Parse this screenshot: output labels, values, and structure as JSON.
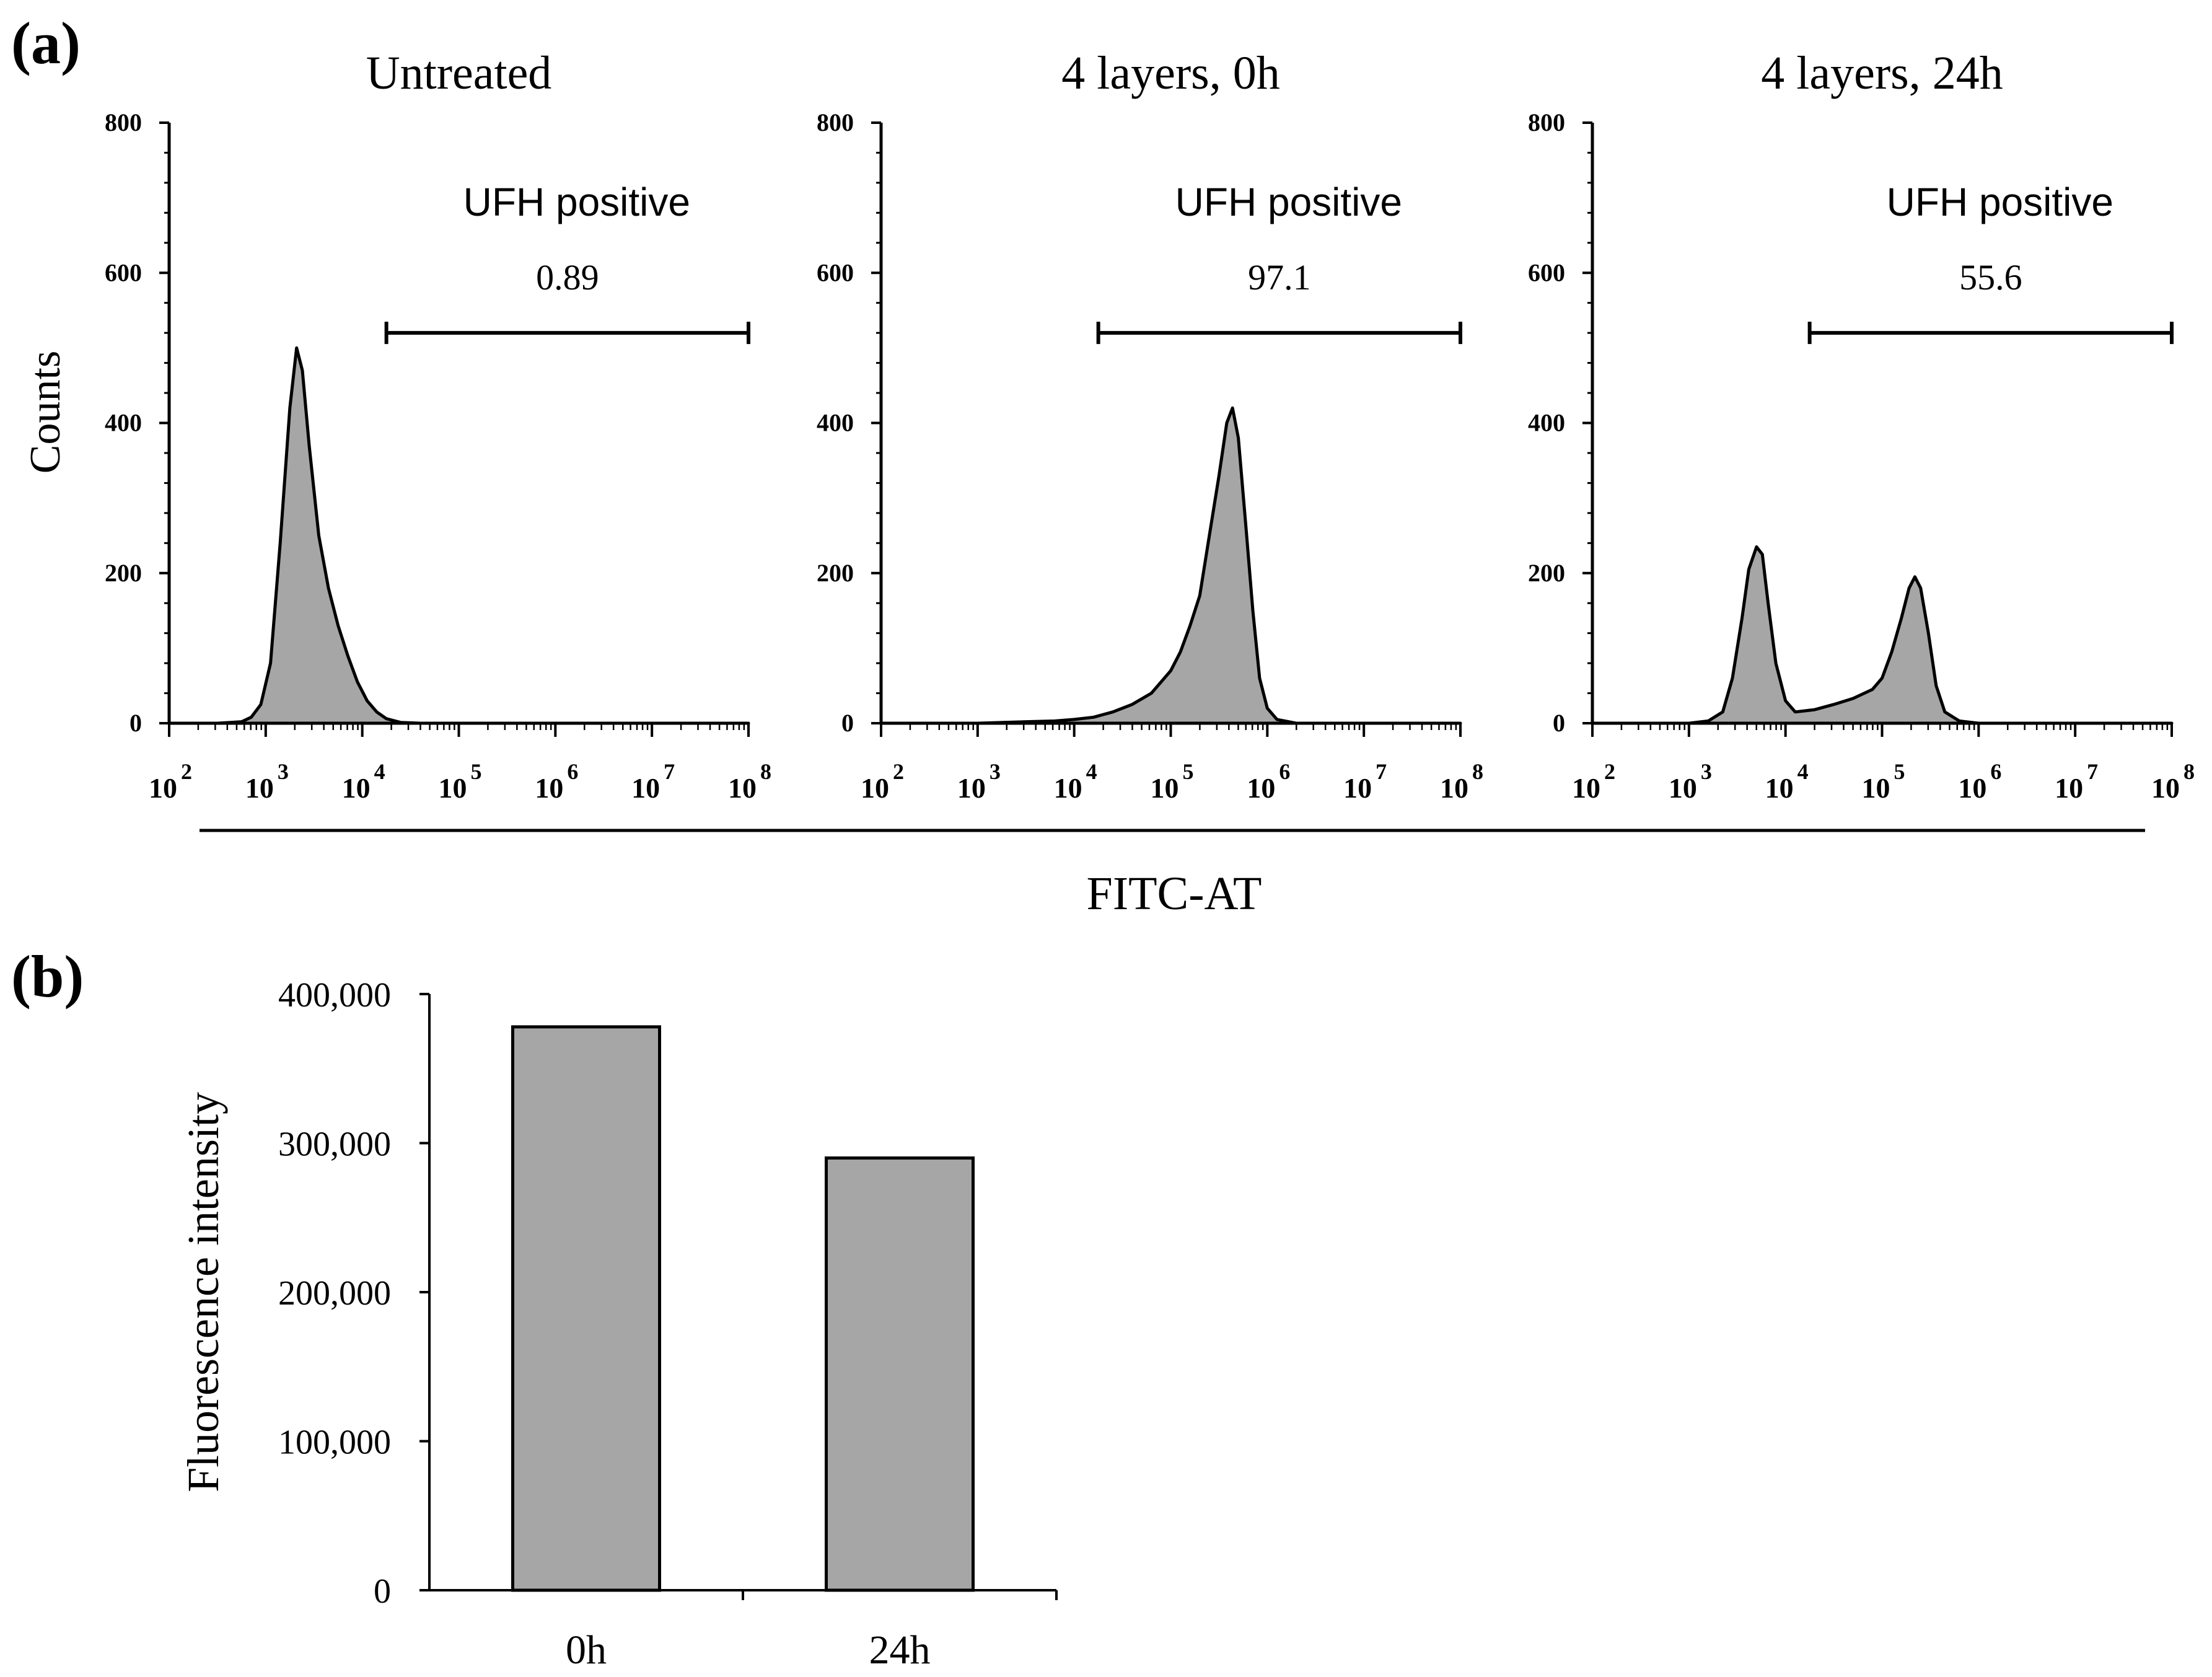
{
  "figure": {
    "panel_a_label": "(a)",
    "panel_b_label": "(b)",
    "shared_xlabel": "FITC-AT",
    "shared_ylabel": "Counts",
    "fill_color": "#a6a6a6",
    "line_color": "#000000"
  },
  "chart_data": [
    {
      "type": "area",
      "title": "Untreated",
      "ylabel": "Counts",
      "xlabel": "FITC-AT",
      "xscale": "log",
      "xlim": [
        100,
        100000000
      ],
      "ylim": [
        0,
        800
      ],
      "yticks": [
        "0",
        "200",
        "400",
        "600",
        "800"
      ],
      "xticks": [
        {
          "base": "10",
          "exp": "2"
        },
        {
          "base": "10",
          "exp": "3"
        },
        {
          "base": "10",
          "exp": "4"
        },
        {
          "base": "10",
          "exp": "5"
        },
        {
          "base": "10",
          "exp": "6"
        },
        {
          "base": "10",
          "exp": "7"
        },
        {
          "base": "10",
          "exp": "8"
        }
      ],
      "gate": {
        "label": "UFH positive",
        "value": "0.89",
        "from_log10": 4.25,
        "to_log10": 8.0,
        "y": 520
      },
      "series": [
        {
          "name": "Untreated",
          "points": [
            [
              2.0,
              0
            ],
            [
              2.5,
              0
            ],
            [
              2.75,
              2
            ],
            [
              2.85,
              8
            ],
            [
              2.95,
              25
            ],
            [
              3.05,
              80
            ],
            [
              3.15,
              240
            ],
            [
              3.25,
              420
            ],
            [
              3.32,
              500
            ],
            [
              3.38,
              470
            ],
            [
              3.45,
              370
            ],
            [
              3.55,
              250
            ],
            [
              3.65,
              180
            ],
            [
              3.75,
              130
            ],
            [
              3.85,
              90
            ],
            [
              3.95,
              55
            ],
            [
              4.05,
              30
            ],
            [
              4.15,
              15
            ],
            [
              4.25,
              6
            ],
            [
              4.4,
              1
            ],
            [
              4.6,
              0
            ],
            [
              8.0,
              0
            ]
          ]
        }
      ]
    },
    {
      "type": "area",
      "title": "4 layers, 0h",
      "ylabel": "Counts",
      "xlabel": "FITC-AT",
      "xscale": "log",
      "xlim": [
        100,
        100000000
      ],
      "ylim": [
        0,
        800
      ],
      "yticks": [
        "0",
        "200",
        "400",
        "600",
        "800"
      ],
      "xticks": [
        {
          "base": "10",
          "exp": "2"
        },
        {
          "base": "10",
          "exp": "3"
        },
        {
          "base": "10",
          "exp": "4"
        },
        {
          "base": "10",
          "exp": "5"
        },
        {
          "base": "10",
          "exp": "6"
        },
        {
          "base": "10",
          "exp": "7"
        },
        {
          "base": "10",
          "exp": "8"
        }
      ],
      "gate": {
        "label": "UFH positive",
        "value": "97.1",
        "from_log10": 4.25,
        "to_log10": 8.0,
        "y": 520
      },
      "series": [
        {
          "name": "4 layers, 0h",
          "points": [
            [
              2.0,
              0
            ],
            [
              3.0,
              0
            ],
            [
              3.5,
              2
            ],
            [
              3.8,
              3
            ],
            [
              4.0,
              5
            ],
            [
              4.2,
              8
            ],
            [
              4.4,
              15
            ],
            [
              4.6,
              25
            ],
            [
              4.8,
              40
            ],
            [
              5.0,
              70
            ],
            [
              5.1,
              95
            ],
            [
              5.2,
              130
            ],
            [
              5.3,
              170
            ],
            [
              5.4,
              250
            ],
            [
              5.5,
              330
            ],
            [
              5.58,
              400
            ],
            [
              5.64,
              420
            ],
            [
              5.7,
              380
            ],
            [
              5.78,
              260
            ],
            [
              5.85,
              150
            ],
            [
              5.92,
              60
            ],
            [
              6.0,
              20
            ],
            [
              6.1,
              5
            ],
            [
              6.3,
              0
            ],
            [
              8.0,
              0
            ]
          ]
        }
      ]
    },
    {
      "type": "area",
      "title": "4 layers, 24h",
      "ylabel": "Counts",
      "xlabel": "FITC-AT",
      "xscale": "log",
      "xlim": [
        100,
        100000000
      ],
      "ylim": [
        0,
        800
      ],
      "yticks": [
        "0",
        "200",
        "400",
        "600",
        "800"
      ],
      "xticks": [
        {
          "base": "10",
          "exp": "2"
        },
        {
          "base": "10",
          "exp": "3"
        },
        {
          "base": "10",
          "exp": "4"
        },
        {
          "base": "10",
          "exp": "5"
        },
        {
          "base": "10",
          "exp": "6"
        },
        {
          "base": "10",
          "exp": "7"
        },
        {
          "base": "10",
          "exp": "8"
        }
      ],
      "gate": {
        "label": "UFH positive",
        "value": "55.6",
        "from_log10": 4.25,
        "to_log10": 8.0,
        "y": 520
      },
      "series": [
        {
          "name": "4 layers, 24h",
          "points": [
            [
              2.0,
              0
            ],
            [
              3.0,
              0
            ],
            [
              3.2,
              3
            ],
            [
              3.35,
              15
            ],
            [
              3.45,
              60
            ],
            [
              3.55,
              140
            ],
            [
              3.62,
              205
            ],
            [
              3.7,
              235
            ],
            [
              3.76,
              225
            ],
            [
              3.82,
              160
            ],
            [
              3.9,
              80
            ],
            [
              4.0,
              30
            ],
            [
              4.1,
              15
            ],
            [
              4.3,
              18
            ],
            [
              4.5,
              25
            ],
            [
              4.7,
              33
            ],
            [
              4.9,
              45
            ],
            [
              5.0,
              60
            ],
            [
              5.1,
              95
            ],
            [
              5.2,
              140
            ],
            [
              5.28,
              180
            ],
            [
              5.34,
              195
            ],
            [
              5.4,
              180
            ],
            [
              5.48,
              120
            ],
            [
              5.56,
              50
            ],
            [
              5.65,
              15
            ],
            [
              5.8,
              3
            ],
            [
              6.0,
              0
            ],
            [
              8.0,
              0
            ]
          ]
        }
      ]
    },
    {
      "type": "bar",
      "categories": [
        "0h",
        "24h"
      ],
      "values": [
        378000,
        290000
      ],
      "ylabel": "Fluorescence intensity",
      "ylim": [
        0,
        400000
      ],
      "yticks": [
        "0",
        "100,000",
        "200,000",
        "300,000",
        "400,000"
      ]
    }
  ]
}
